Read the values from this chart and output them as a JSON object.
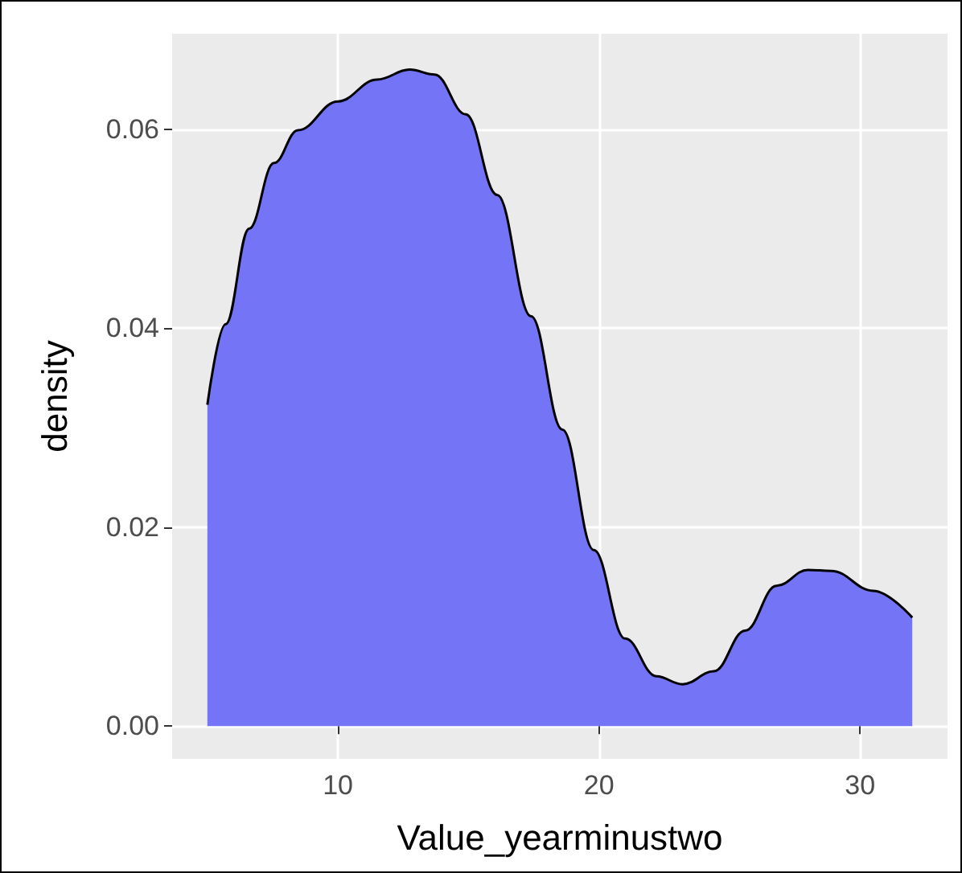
{
  "chart_data": {
    "type": "area",
    "xlabel": "Value_yearminustwo",
    "ylabel": "density",
    "x": [
      5.0,
      5.7,
      6.6,
      7.55,
      8.47,
      10,
      11.5,
      12.75,
      13.7,
      14.9,
      16.1,
      17.4,
      18.6,
      19.8,
      21.0,
      22.2,
      23.2,
      24.4,
      25.6,
      26.8,
      28.0,
      28.9,
      30.5,
      32.0
    ],
    "series": [
      {
        "color": "#7474f6",
        "values": [
          0.0323,
          0.0404,
          0.05,
          0.0566,
          0.0599,
          0.0628,
          0.065,
          0.066,
          0.0655,
          0.0615,
          0.0534,
          0.0412,
          0.0298,
          0.0177,
          0.0088,
          0.005,
          0.0042,
          0.0055,
          0.0096,
          0.0141,
          0.0157,
          0.0156,
          0.0136,
          0.0109
        ]
      }
    ],
    "xlim": [
      3.65,
      33.35
    ],
    "xticks": [
      10,
      20,
      30
    ],
    "ylim": [
      -0.0033,
      0.0696
    ],
    "yticks": [
      {
        "value": 0,
        "label": "0.00"
      },
      {
        "value": 0.02,
        "label": "0.02"
      },
      {
        "value": 0.04,
        "label": "0.04"
      },
      {
        "value": 0.06,
        "label": "0.06"
      }
    ],
    "grid": true
  }
}
